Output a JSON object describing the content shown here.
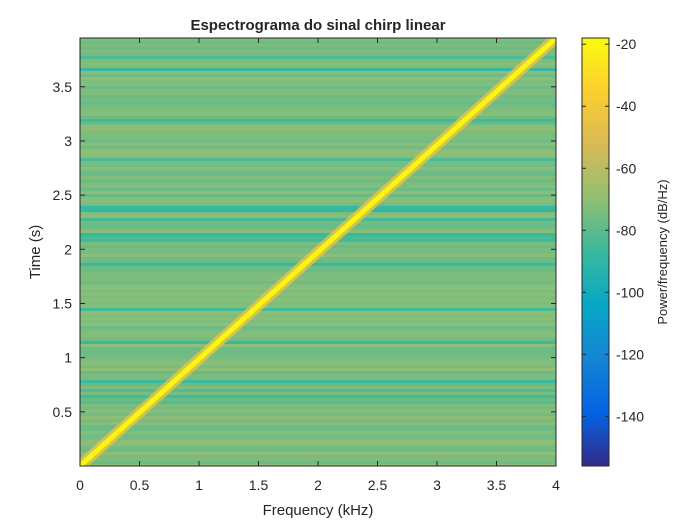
{
  "chart_data": {
    "type": "heatmap",
    "title": "Espectrograma do sinal chirp linear",
    "xlabel": "Frequency (kHz)",
    "ylabel": "Time (s)",
    "xlim": [
      0,
      4
    ],
    "ylim": [
      0,
      3.95
    ],
    "xticks": [
      0,
      0.5,
      1,
      1.5,
      2,
      2.5,
      3,
      3.5,
      4
    ],
    "xtick_labels": [
      "0",
      "0.5",
      "1",
      "1.5",
      "2",
      "2.5",
      "3",
      "3.5",
      "4"
    ],
    "yticks": [
      0.5,
      1,
      1.5,
      2,
      2.5,
      3,
      3.5
    ],
    "ytick_labels": [
      "0.5",
      "1",
      "1.5",
      "2",
      "2.5",
      "3",
      "3.5"
    ],
    "colorbar": {
      "label": "Power/frequency (dB/Hz)",
      "range": [
        -156,
        -18
      ],
      "ticks": [
        -140,
        -120,
        -100,
        -80,
        -60,
        -40,
        -20
      ],
      "tick_labels": [
        "-140",
        "-120",
        "-100",
        "-80",
        "-60",
        "-40",
        "-20"
      ],
      "colormap": "parula"
    },
    "background_level_db": -72,
    "ridge": {
      "description_values": "linear chirp peak",
      "start": {
        "frequency_khz": 0,
        "time_s": 0
      },
      "end": {
        "frequency_khz": 4,
        "time_s": 3.95
      },
      "peak_level_db": -20
    },
    "grid": false
  }
}
